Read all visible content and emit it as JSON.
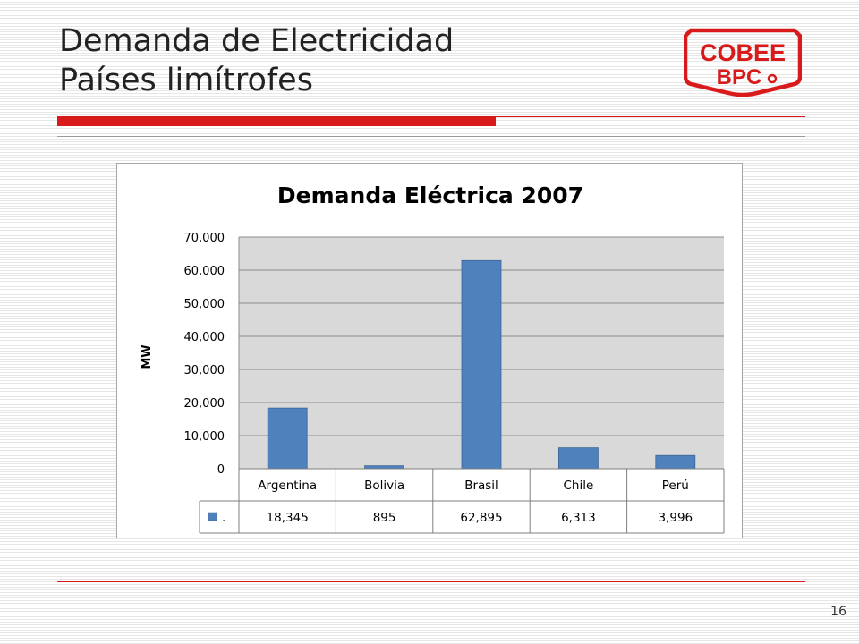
{
  "slide": {
    "title_line1": "Demanda de Electricidad",
    "title_line2": "Países limítrofes",
    "page_number": "16"
  },
  "logo": {
    "line1": "COBEE",
    "line2": "BPC",
    "color": "#d91a1a"
  },
  "colors": {
    "accent": "#d91a1a",
    "bar": "#4f81bd",
    "plot_background": "#d9d9d9"
  },
  "chart_data": {
    "type": "bar",
    "title": "Demanda Eléctrica 2007",
    "xlabel": "",
    "ylabel": "MW",
    "ylim": [
      0,
      70000
    ],
    "yticks": [
      0,
      10000,
      20000,
      30000,
      40000,
      50000,
      60000,
      70000
    ],
    "ytick_labels": [
      "0",
      "10,000",
      "20,000",
      "30,000",
      "40,000",
      "50,000",
      "60,000",
      "70,000"
    ],
    "grid": true,
    "categories": [
      "Argentina",
      "Bolivia",
      "Brasil",
      "Chile",
      "Perú"
    ],
    "series": [
      {
        "name": ".",
        "values": [
          18345,
          895,
          62895,
          6313,
          3996
        ],
        "value_labels": [
          "18,345",
          "895",
          "62,895",
          "6,313",
          "3,996"
        ],
        "color": "#4f81bd"
      }
    ],
    "data_table": true
  }
}
